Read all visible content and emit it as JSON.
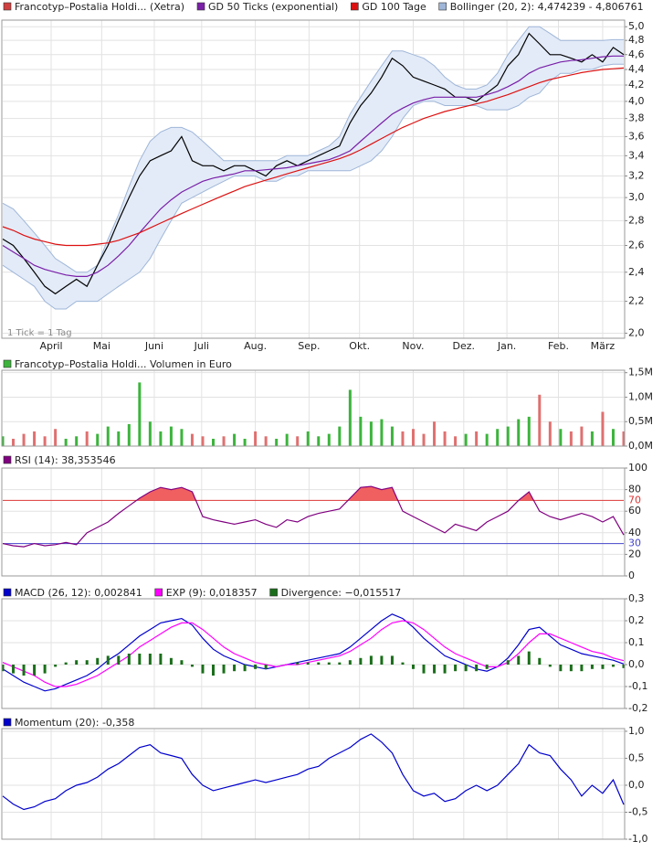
{
  "chart_data": [
    {
      "type": "line",
      "log_scale": true,
      "grid": true,
      "annotation": "1 Tick = 1 Tag",
      "xlim": [
        0,
        59
      ],
      "xticks": [
        {
          "value": 4.6,
          "label": "April"
        },
        {
          "value": 9.4,
          "label": "Mai"
        },
        {
          "value": 14.4,
          "label": "Juni"
        },
        {
          "value": 18.9,
          "label": "Juli"
        },
        {
          "value": 24.0,
          "label": "Aug."
        },
        {
          "value": 29.1,
          "label": "Sep."
        },
        {
          "value": 33.9,
          "label": "Okt."
        },
        {
          "value": 39.0,
          "label": "Nov."
        },
        {
          "value": 43.8,
          "label": "Dez."
        },
        {
          "value": 47.9,
          "label": "Jan."
        },
        {
          "value": 52.8,
          "label": "Feb."
        },
        {
          "value": 57.0,
          "label": "März"
        }
      ],
      "ylim": [
        1.97,
        5.1
      ],
      "yticks": [
        {
          "value": 2.0,
          "label": "2,0"
        },
        {
          "value": 2.2,
          "label": "2,2"
        },
        {
          "value": 2.4,
          "label": "2,4"
        },
        {
          "value": 2.6,
          "label": "2,6"
        },
        {
          "value": 2.8,
          "label": "2,8"
        },
        {
          "value": 3.0,
          "label": "3,0"
        },
        {
          "value": 3.2,
          "label": "3,2"
        },
        {
          "value": 3.4,
          "label": "3,4"
        },
        {
          "value": 3.6,
          "label": "3,6"
        },
        {
          "value": 3.8,
          "label": "3,8"
        },
        {
          "value": 4.0,
          "label": "4,0"
        },
        {
          "value": 4.2,
          "label": "4,2"
        },
        {
          "value": 4.4,
          "label": "4,4"
        },
        {
          "value": 4.6,
          "label": "4,6"
        },
        {
          "value": 4.8,
          "label": "4,8"
        },
        {
          "value": 5.0,
          "label": "5,0"
        }
      ],
      "series": [
        {
          "name": "Francotyp–Postalia Holdi... (Xetra)",
          "color": "#d04040",
          "line_color": "#000000",
          "values": [
            2.65,
            2.6,
            2.5,
            2.4,
            2.3,
            2.25,
            2.3,
            2.35,
            2.3,
            2.45,
            2.6,
            2.8,
            3.0,
            3.2,
            3.35,
            3.4,
            3.45,
            3.6,
            3.35,
            3.3,
            3.3,
            3.25,
            3.3,
            3.3,
            3.25,
            3.2,
            3.3,
            3.35,
            3.3,
            3.35,
            3.4,
            3.45,
            3.5,
            3.75,
            3.95,
            4.1,
            4.3,
            4.55,
            4.45,
            4.3,
            4.25,
            4.2,
            4.15,
            4.05,
            4.05,
            4.0,
            4.1,
            4.2,
            4.45,
            4.6,
            4.9,
            4.75,
            4.6,
            4.6,
            4.55,
            4.5,
            4.6,
            4.5,
            4.7,
            4.6
          ]
        },
        {
          "name": "GD 50 Ticks (exponential)",
          "color": "#7a1fa8",
          "values": [
            2.6,
            2.55,
            2.5,
            2.45,
            2.42,
            2.4,
            2.38,
            2.37,
            2.37,
            2.4,
            2.45,
            2.52,
            2.6,
            2.7,
            2.8,
            2.9,
            2.98,
            3.05,
            3.1,
            3.15,
            3.18,
            3.2,
            3.22,
            3.25,
            3.25,
            3.26,
            3.27,
            3.28,
            3.3,
            3.32,
            3.34,
            3.36,
            3.4,
            3.45,
            3.55,
            3.65,
            3.75,
            3.85,
            3.92,
            3.98,
            4.02,
            4.05,
            4.05,
            4.05,
            4.05,
            4.05,
            4.08,
            4.12,
            4.18,
            4.25,
            4.35,
            4.42,
            4.46,
            4.5,
            4.52,
            4.53,
            4.55,
            4.57,
            4.58,
            4.58
          ]
        },
        {
          "name": "GD 100 Tage",
          "color": "#dd1111",
          "values": [
            2.75,
            2.72,
            2.68,
            2.65,
            2.63,
            2.61,
            2.6,
            2.6,
            2.6,
            2.61,
            2.62,
            2.64,
            2.67,
            2.7,
            2.74,
            2.78,
            2.82,
            2.86,
            2.9,
            2.94,
            2.98,
            3.02,
            3.06,
            3.1,
            3.13,
            3.16,
            3.19,
            3.22,
            3.25,
            3.28,
            3.31,
            3.34,
            3.37,
            3.41,
            3.46,
            3.52,
            3.58,
            3.64,
            3.7,
            3.75,
            3.8,
            3.84,
            3.88,
            3.91,
            3.94,
            3.97,
            4.0,
            4.04,
            4.08,
            4.13,
            4.18,
            4.23,
            4.27,
            4.3,
            4.33,
            4.36,
            4.38,
            4.4,
            4.41,
            4.42
          ]
        },
        {
          "name": "Bollinger (20, 2): 4,474239 - 4,806761",
          "color": "#9fb6d8",
          "fill": "#e3ebf8",
          "upper": [
            2.95,
            2.9,
            2.8,
            2.7,
            2.6,
            2.5,
            2.45,
            2.4,
            2.4,
            2.45,
            2.65,
            2.85,
            3.1,
            3.35,
            3.55,
            3.65,
            3.7,
            3.7,
            3.65,
            3.55,
            3.45,
            3.35,
            3.35,
            3.35,
            3.35,
            3.35,
            3.35,
            3.4,
            3.4,
            3.4,
            3.45,
            3.5,
            3.6,
            3.85,
            4.05,
            4.25,
            4.45,
            4.65,
            4.65,
            4.6,
            4.55,
            4.45,
            4.3,
            4.2,
            4.15,
            4.15,
            4.2,
            4.35,
            4.6,
            4.8,
            5.0,
            5.0,
            4.9,
            4.8,
            4.8,
            4.8,
            4.8,
            4.8,
            4.81,
            4.81
          ],
          "lower": [
            2.45,
            2.4,
            2.35,
            2.3,
            2.2,
            2.15,
            2.15,
            2.2,
            2.2,
            2.2,
            2.25,
            2.3,
            2.35,
            2.4,
            2.5,
            2.65,
            2.8,
            2.95,
            3.0,
            3.05,
            3.1,
            3.15,
            3.2,
            3.2,
            3.2,
            3.15,
            3.15,
            3.2,
            3.2,
            3.25,
            3.25,
            3.25,
            3.25,
            3.25,
            3.3,
            3.35,
            3.45,
            3.6,
            3.8,
            3.95,
            4.0,
            4.0,
            3.95,
            3.95,
            3.95,
            3.95,
            3.9,
            3.9,
            3.9,
            3.95,
            4.05,
            4.1,
            4.25,
            4.35,
            4.35,
            4.4,
            4.4,
            4.45,
            4.47,
            4.47
          ]
        }
      ]
    },
    {
      "type": "bar",
      "grid": true,
      "ylim": [
        0,
        1.55
      ],
      "yticks": [
        {
          "value": 0,
          "label": "0,0M"
        },
        {
          "value": 0.5,
          "label": "0,5M"
        },
        {
          "value": 1.0,
          "label": "1,0M"
        },
        {
          "value": 1.5,
          "label": "1,5M"
        }
      ],
      "series": [
        {
          "name": "Francotyp–Postalia Holdi... Volumen in Euro",
          "color": "#3cb43c",
          "down_color": "#e07070",
          "values": [
            0.2,
            0.15,
            0.25,
            0.3,
            0.2,
            0.35,
            0.15,
            0.2,
            0.3,
            0.25,
            0.4,
            0.3,
            0.45,
            1.3,
            0.5,
            0.3,
            0.4,
            0.35,
            0.25,
            0.2,
            0.15,
            0.2,
            0.25,
            0.15,
            0.3,
            0.2,
            0.15,
            0.25,
            0.2,
            0.3,
            0.2,
            0.25,
            0.4,
            1.15,
            0.6,
            0.5,
            0.55,
            0.4,
            0.3,
            0.35,
            0.25,
            0.5,
            0.3,
            0.2,
            0.25,
            0.3,
            0.25,
            0.35,
            0.4,
            0.55,
            0.6,
            1.05,
            0.5,
            0.35,
            0.3,
            0.4,
            0.3,
            0.7,
            0.35,
            0.3
          ]
        }
      ]
    },
    {
      "type": "line",
      "grid": true,
      "ylim": [
        0,
        100
      ],
      "yticks": [
        0,
        20,
        40,
        60,
        80,
        100
      ],
      "levels": [
        {
          "value": 30,
          "color": "#4444cc"
        },
        {
          "value": 70,
          "color": "#dd3333"
        }
      ],
      "overbought_fill": "#f06060",
      "series": [
        {
          "name": "RSI (14): 38,353546",
          "color": "#800080",
          "values": [
            30,
            28,
            27,
            30,
            28,
            29,
            31,
            29,
            40,
            45,
            50,
            58,
            65,
            72,
            78,
            82,
            80,
            82,
            78,
            55,
            52,
            50,
            48,
            50,
            52,
            48,
            45,
            52,
            50,
            55,
            58,
            60,
            62,
            72,
            82,
            83,
            80,
            82,
            60,
            55,
            50,
            45,
            40,
            48,
            45,
            42,
            50,
            55,
            60,
            70,
            78,
            60,
            55,
            52,
            55,
            58,
            55,
            50,
            55,
            38
          ]
        }
      ]
    },
    {
      "type": "line",
      "grid": true,
      "ylim": [
        -0.2,
        0.3
      ],
      "yticks": [
        {
          "value": -0.2,
          "label": "-0,2"
        },
        {
          "value": -0.1,
          "label": "-0,1"
        },
        {
          "value": 0,
          "label": "0,0"
        },
        {
          "value": 0.1,
          "label": "0,1"
        },
        {
          "value": 0.2,
          "label": "0,2"
        },
        {
          "value": 0.3,
          "label": "0,3"
        }
      ],
      "series": [
        {
          "name": "MACD (26, 12): 0,002841",
          "color": "#0000cc",
          "values": [
            -0.02,
            -0.05,
            -0.08,
            -0.1,
            -0.12,
            -0.11,
            -0.09,
            -0.07,
            -0.05,
            -0.02,
            0.02,
            0.05,
            0.09,
            0.13,
            0.16,
            0.19,
            0.2,
            0.21,
            0.18,
            0.12,
            0.07,
            0.04,
            0.02,
            0.0,
            -0.01,
            -0.02,
            -0.01,
            0.0,
            0.01,
            0.02,
            0.03,
            0.04,
            0.05,
            0.08,
            0.12,
            0.16,
            0.2,
            0.23,
            0.21,
            0.17,
            0.12,
            0.08,
            0.04,
            0.02,
            0.0,
            -0.02,
            -0.03,
            -0.01,
            0.03,
            0.09,
            0.16,
            0.17,
            0.13,
            0.09,
            0.07,
            0.05,
            0.04,
            0.03,
            0.02,
            0.003
          ]
        },
        {
          "name": "EXP (9): 0,018357",
          "color": "#ff00ff",
          "values": [
            0.01,
            -0.01,
            -0.03,
            -0.05,
            -0.08,
            -0.1,
            -0.1,
            -0.09,
            -0.07,
            -0.05,
            -0.02,
            0.01,
            0.04,
            0.08,
            0.11,
            0.14,
            0.17,
            0.19,
            0.19,
            0.16,
            0.12,
            0.08,
            0.05,
            0.03,
            0.01,
            0.0,
            -0.01,
            0.0,
            0.0,
            0.01,
            0.02,
            0.03,
            0.04,
            0.06,
            0.09,
            0.12,
            0.16,
            0.19,
            0.2,
            0.19,
            0.16,
            0.12,
            0.08,
            0.05,
            0.03,
            0.01,
            -0.01,
            -0.01,
            0.01,
            0.05,
            0.1,
            0.14,
            0.14,
            0.12,
            0.1,
            0.08,
            0.06,
            0.05,
            0.03,
            0.018
          ]
        },
        {
          "name": "Divergence: −0,015517",
          "color": "#1a6e1a",
          "style": "histogram",
          "values": [
            -0.03,
            -0.04,
            -0.05,
            -0.05,
            -0.04,
            -0.01,
            0.01,
            0.02,
            0.02,
            0.03,
            0.04,
            0.04,
            0.05,
            0.05,
            0.05,
            0.05,
            0.03,
            0.02,
            -0.01,
            -0.04,
            -0.05,
            -0.04,
            -0.03,
            -0.03,
            -0.02,
            -0.02,
            0.0,
            0.0,
            0.01,
            0.01,
            0.01,
            0.01,
            0.01,
            0.02,
            0.03,
            0.04,
            0.04,
            0.04,
            0.01,
            -0.02,
            -0.04,
            -0.04,
            -0.04,
            -0.03,
            -0.03,
            -0.03,
            -0.02,
            0.0,
            0.02,
            0.04,
            0.06,
            0.03,
            -0.01,
            -0.03,
            -0.03,
            -0.03,
            -0.02,
            -0.02,
            -0.01,
            -0.016
          ]
        }
      ]
    },
    {
      "type": "line",
      "grid": true,
      "ylim": [
        -1.0,
        1.05
      ],
      "yticks": [
        {
          "value": -1.0,
          "label": "-1,0"
        },
        {
          "value": -0.5,
          "label": "-0,5"
        },
        {
          "value": 0,
          "label": "0,0"
        },
        {
          "value": 0.5,
          "label": "0,5"
        },
        {
          "value": 1.0,
          "label": "1,0"
        }
      ],
      "series": [
        {
          "name": "Momentum (20): -0,358",
          "color": "#0000cc",
          "values": [
            -0.2,
            -0.35,
            -0.45,
            -0.4,
            -0.3,
            -0.25,
            -0.1,
            0.0,
            0.05,
            0.15,
            0.3,
            0.4,
            0.55,
            0.7,
            0.75,
            0.6,
            0.55,
            0.5,
            0.2,
            0.0,
            -0.1,
            -0.05,
            0.0,
            0.05,
            0.1,
            0.05,
            0.1,
            0.15,
            0.2,
            0.3,
            0.35,
            0.5,
            0.6,
            0.7,
            0.85,
            0.95,
            0.8,
            0.6,
            0.2,
            -0.1,
            -0.2,
            -0.15,
            -0.3,
            -0.25,
            -0.1,
            0.0,
            -0.1,
            0.0,
            0.2,
            0.4,
            0.75,
            0.6,
            0.55,
            0.3,
            0.1,
            -0.2,
            0.0,
            -0.15,
            0.1,
            -0.358
          ]
        }
      ]
    }
  ]
}
